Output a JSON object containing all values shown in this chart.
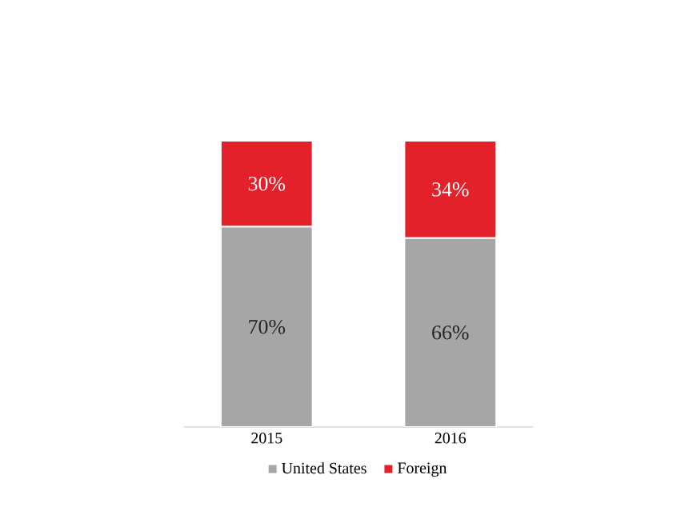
{
  "chart_data": {
    "type": "bar",
    "stacked": true,
    "categories": [
      "2015",
      "2016"
    ],
    "series": [
      {
        "name": "United States",
        "color": "#a6a6a6",
        "values": [
          70,
          66
        ],
        "value_labels": [
          "70%",
          "66%"
        ]
      },
      {
        "name": "Foreign",
        "color": "#e3212b",
        "values": [
          30,
          34
        ],
        "value_labels": [
          "30%",
          "34%"
        ]
      }
    ],
    "legend": "bottom"
  }
}
